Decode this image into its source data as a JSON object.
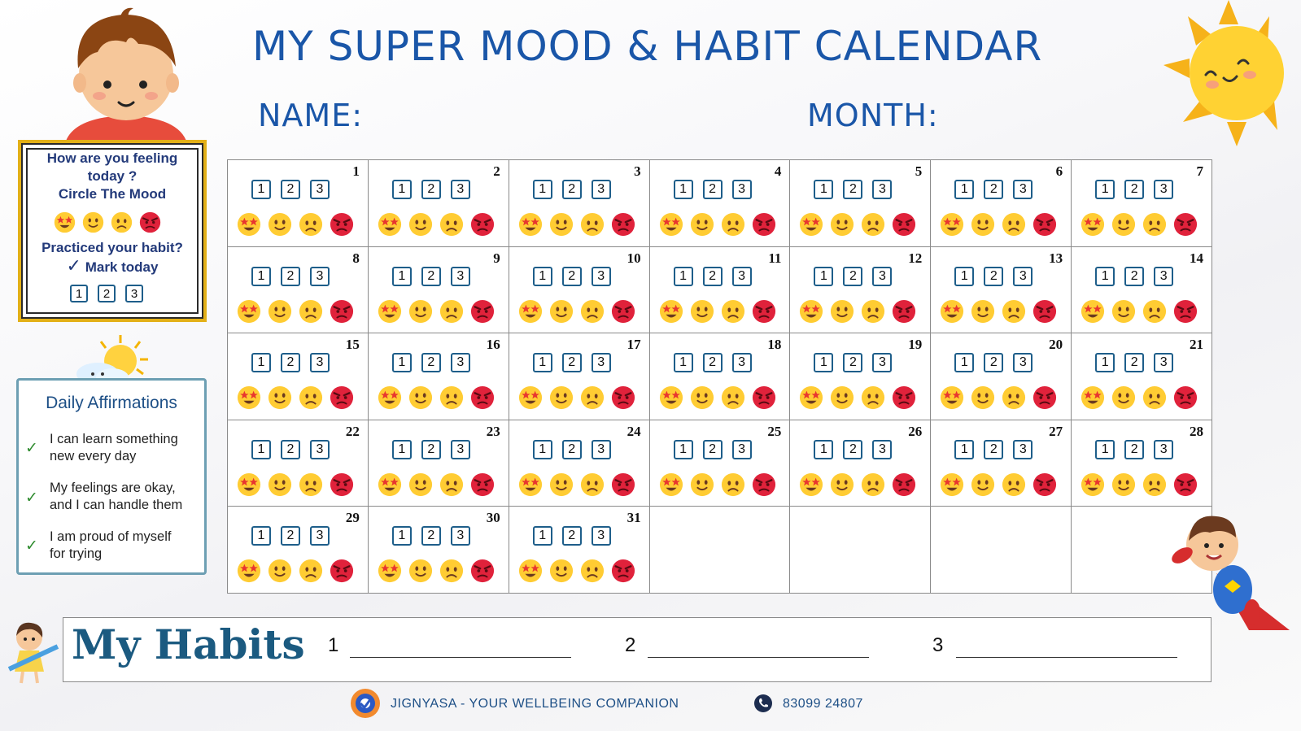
{
  "title": "MY SUPER MOOD & HABIT CALENDAR",
  "name_label": "NAME:",
  "month_label": "MONTH:",
  "mood_card": {
    "question_line1": "How are you feeling",
    "question_line2": "today ?",
    "question_line3": "Circle The Mood",
    "habit_line1": "Practiced your habit?",
    "habit_line2": "Mark today",
    "check_glyph": "✓",
    "boxes": [
      "1",
      "2",
      "3"
    ]
  },
  "affirmations": {
    "title": "Daily Affirmations",
    "items": [
      {
        "line1": "I can learn something",
        "line2": "new every day"
      },
      {
        "line1": "My feelings are okay,",
        "line2": "and I can handle them"
      },
      {
        "line1": "I am proud of myself",
        "line2": "for trying"
      }
    ],
    "check_glyph": "✓"
  },
  "calendar": {
    "days": [
      "1",
      "2",
      "3",
      "4",
      "5",
      "6",
      "7",
      "8",
      "9",
      "10",
      "11",
      "12",
      "13",
      "14",
      "15",
      "16",
      "17",
      "18",
      "19",
      "20",
      "21",
      "22",
      "23",
      "24",
      "25",
      "26",
      "27",
      "28",
      "29",
      "30",
      "31"
    ],
    "habit_boxes": [
      "1",
      "2",
      "3"
    ],
    "moods": [
      "star-struck-face-icon",
      "smiling-face-icon",
      "frowning-face-icon",
      "angry-face-icon"
    ]
  },
  "habits": {
    "title": "My Habits",
    "numbers": [
      "1",
      "2",
      "3"
    ]
  },
  "footer": {
    "brand": "JIGNYASA - YOUR WELLBEING COMPANION",
    "phone": "83099 24807"
  },
  "colors": {
    "title_blue": "#1a56a8",
    "frame_yellow": "#e3b017",
    "box_teal": "#1e5e8a",
    "habits_teal": "#1b5a80"
  }
}
